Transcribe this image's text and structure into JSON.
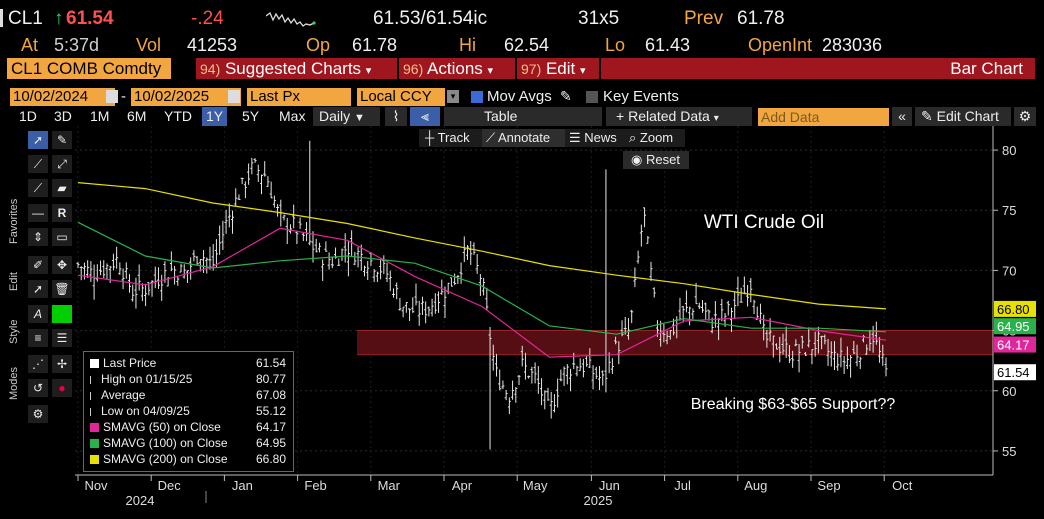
{
  "quote": {
    "ticker": "CL1",
    "up_arrow": "↑",
    "last": "61.54",
    "change": "-.24",
    "bid_ask": "61.53/61.54ic",
    "size": "31x5",
    "prev_label": "Prev",
    "prev": "61.78",
    "at_label": "At",
    "at_time": "5:37d",
    "vol_label": "Vol",
    "vol": "41253",
    "op_label": "Op",
    "open": "61.78",
    "hi_label": "Hi",
    "high": "62.54",
    "lo_label": "Lo",
    "low": "61.43",
    "oi_label": "OpenInt",
    "open_interest": "283036"
  },
  "command": {
    "ticker": "CL1 COMB Comdty",
    "suggested_num": "94)",
    "suggested": "Suggested Charts",
    "actions_num": "96)",
    "actions": "Actions",
    "edit_num": "97)",
    "edit": "Edit",
    "chart_type": "Bar Chart"
  },
  "datebar": {
    "start": "10/02/2024",
    "dash": "-",
    "end": "10/02/2025",
    "field": "Last Px",
    "currency": "Local CCY",
    "mov_avgs": "Mov Avgs",
    "key_events": "Key Events"
  },
  "toolbar": {
    "periods": [
      "1D",
      "3D",
      "1M",
      "6M",
      "YTD",
      "1Y",
      "5Y",
      "Max"
    ],
    "selected_period": "1Y",
    "frequency": "Daily",
    "table": "Table",
    "related": "Related Data",
    "add_data_placeholder": "Add Data",
    "edit_chart": "Edit Chart",
    "track": "Track",
    "annotate": "Annotate",
    "news": "News",
    "zoom": "Zoom",
    "reset": "Reset"
  },
  "palette": {
    "favorites": "Favorites",
    "edit": "Edit",
    "style": "Style",
    "modes": "Modes"
  },
  "legend": {
    "rows": [
      {
        "label": "Last Price",
        "value": "61.54",
        "color": "#ffffff"
      },
      {
        "label": "High on 01/15/25",
        "value": "80.77",
        "color": ""
      },
      {
        "label": "Average",
        "value": "67.08",
        "color": ""
      },
      {
        "label": "Low on 04/09/25",
        "value": "55.12",
        "color": ""
      },
      {
        "label": "SMAVG (50)  on Close",
        "value": "64.17",
        "color": "#e0269a"
      },
      {
        "label": "SMAVG (100)  on Close",
        "value": "64.95",
        "color": "#2ab24a"
      },
      {
        "label": "SMAVG (200)  on Close",
        "value": "66.80",
        "color": "#e8e000"
      }
    ]
  },
  "chart_data": {
    "type": "bar",
    "title": "WTI Crude Oil",
    "annotation": "Breaking $63-$65 Support??",
    "frequency": "daily OHLC",
    "y_ticks": [
      "55",
      "60",
      "65",
      "70",
      "75",
      "80"
    ],
    "ylim": [
      53,
      82
    ],
    "x_months": [
      "Nov",
      "Dec",
      "Jan",
      "Feb",
      "Mar",
      "Apr",
      "May",
      "Jun",
      "Jul",
      "Aug",
      "Sep",
      "Oct"
    ],
    "x_years": [
      "2024",
      "2025"
    ],
    "support_zone": [
      63,
      65
    ],
    "price_tags": [
      {
        "value": "66.80",
        "color": "#e8e000"
      },
      {
        "value": "64.95",
        "color": "#2ab24a"
      },
      {
        "value": "64.17",
        "color": "#e0269a"
      },
      {
        "value": "61.54",
        "color": "#ffffff"
      }
    ],
    "colors": {
      "bars": "#e6e6e6",
      "sma50": "#e0269a",
      "sma100": "#2ab24a",
      "sma200": "#e8e000",
      "zone": "#5a0f14"
    },
    "series": [
      {
        "name": "Last Price",
        "weekly_close": [
          70.5,
          69.8,
          70.2,
          71.0,
          68.3,
          68.5,
          69.4,
          70.1,
          69.8,
          71.5,
          70.4,
          73.9,
          76.5,
          78.6,
          77.9,
          74.2,
          73.7,
          72.5,
          71.3,
          70.8,
          72.0,
          71.2,
          70.6,
          69.7,
          67.2,
          66.6,
          66.9,
          68.0,
          69.4,
          71.8,
          69.2,
          61.5,
          59.6,
          62.1,
          61.0,
          58.2,
          61.4,
          62.3,
          61.8,
          60.8,
          63.7,
          65.1,
          74.9,
          65.4,
          64.8,
          66.5,
          67.3,
          65.8,
          66.2,
          67.4,
          69.0,
          64.3,
          63.8,
          63.1,
          63.5,
          64.0,
          62.9,
          62.5,
          63.3,
          64.7,
          61.5
        ]
      },
      {
        "name": "SMAVG (50) on Close",
        "monthly": [
          69.6,
          68.8,
          70.3,
          73.5,
          72.5,
          69.5,
          67.0,
          62.8,
          63.0,
          65.8,
          66.1,
          65.0,
          64.2
        ]
      },
      {
        "name": "SMAVG (100) on Close",
        "monthly": [
          74.0,
          71.2,
          70.2,
          70.8,
          71.2,
          70.6,
          68.7,
          65.4,
          64.7,
          66.0,
          65.2,
          65.2,
          64.9
        ]
      },
      {
        "name": "SMAVG (200) on Close",
        "monthly": [
          77.3,
          76.8,
          75.6,
          74.8,
          73.9,
          72.7,
          71.6,
          70.4,
          69.6,
          68.9,
          68.0,
          67.2,
          66.8
        ]
      }
    ]
  }
}
